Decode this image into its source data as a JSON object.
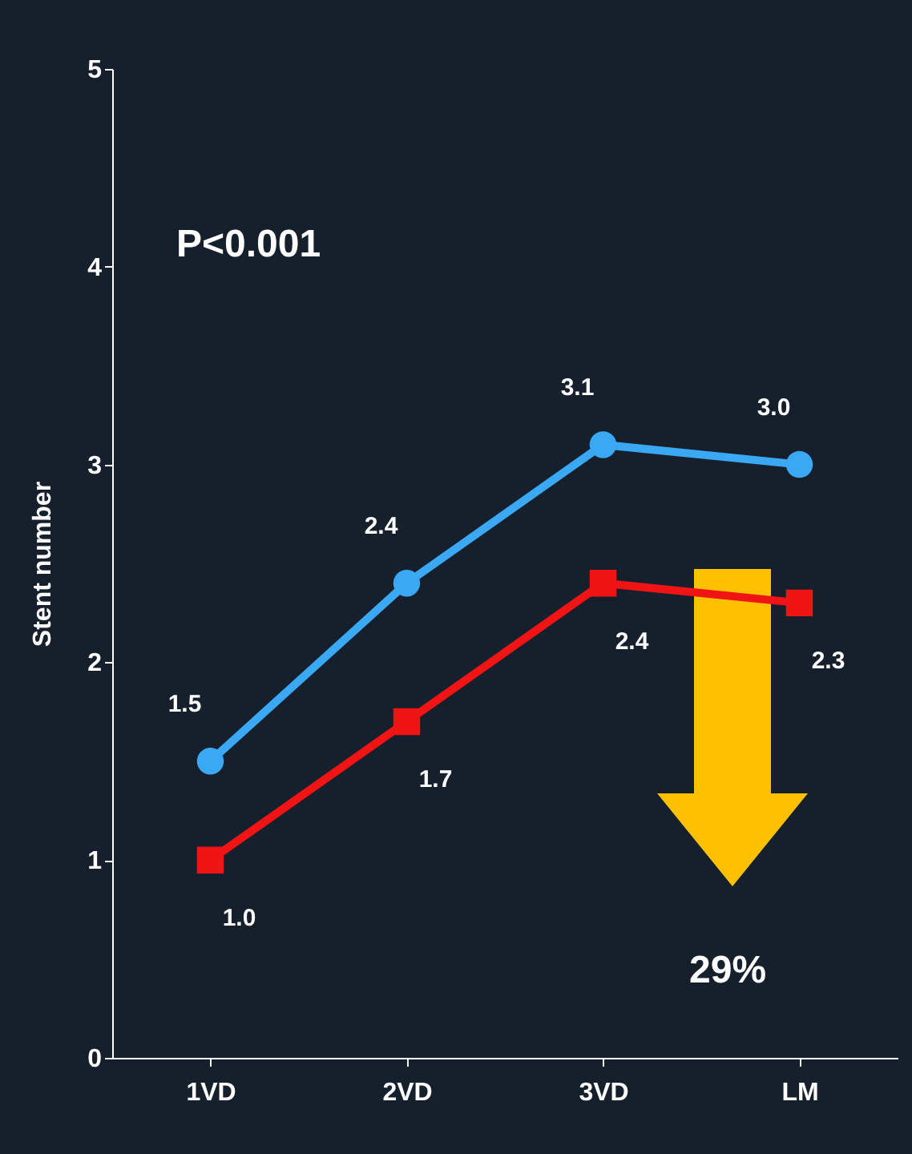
{
  "chart_data": {
    "type": "line",
    "ylabel": "Stent number",
    "categories": [
      "1VD",
      "2VD",
      "3VD",
      "LM"
    ],
    "series": [
      {
        "color": "#3aa8f2",
        "marker": "circle",
        "values": [
          1.5,
          2.4,
          3.1,
          3.0
        ],
        "value_labels": [
          "1.5",
          "2.4",
          "3.1",
          "3.0"
        ]
      },
      {
        "color": "#f01414",
        "marker": "square",
        "values": [
          1.0,
          1.7,
          2.4,
          2.3
        ],
        "value_labels": [
          "1.0",
          "1.7",
          "2.4",
          "2.3"
        ]
      }
    ],
    "ylim": [
      0,
      5
    ],
    "yticks": [
      0,
      1,
      2,
      3,
      4,
      5
    ],
    "grid": false,
    "legend": false,
    "annotations": [
      "P<0.001",
      "29%"
    ]
  }
}
